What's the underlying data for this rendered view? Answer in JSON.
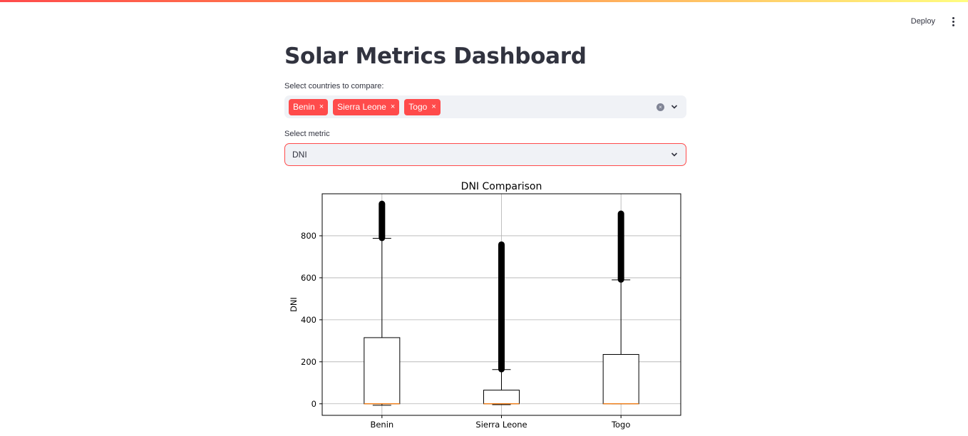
{
  "toolbar": {
    "deploy_label": "Deploy",
    "menu_icon": "vertical-dots-icon"
  },
  "page": {
    "title": "Solar Metrics Dashboard"
  },
  "countries": {
    "label": "Select countries to compare:",
    "selected": [
      "Benin",
      "Sierra Leone",
      "Togo"
    ],
    "chip_remove_glyph": "×"
  },
  "metric": {
    "label": "Select metric",
    "value": "DNI"
  },
  "colors": {
    "accent": "#ff4b4b",
    "input_bg": "#f0f2f6",
    "median": "#ff7f0e"
  },
  "chart_data": {
    "type": "box",
    "title": "DNI Comparison",
    "xlabel": "",
    "ylabel": "DNI",
    "ylim": [
      -55,
      1000
    ],
    "yticks": [
      0,
      200,
      400,
      600,
      800
    ],
    "grid": true,
    "categories": [
      "Benin",
      "Sierra Leone",
      "Togo"
    ],
    "boxes": [
      {
        "name": "Benin",
        "whisker_low": -7,
        "q1": 0,
        "median": 0,
        "q3": 315,
        "whisker_high": 788,
        "outlier_min": 790,
        "outlier_max": 952
      },
      {
        "name": "Sierra Leone",
        "whisker_low": -4,
        "q1": 0,
        "median": 0,
        "q3": 65,
        "whisker_high": 163,
        "outlier_min": 165,
        "outlier_max": 758
      },
      {
        "name": "Togo",
        "whisker_low": 0,
        "q1": 0,
        "median": 0,
        "q3": 235,
        "whisker_high": 590,
        "outlier_min": 592,
        "outlier_max": 905
      }
    ]
  }
}
